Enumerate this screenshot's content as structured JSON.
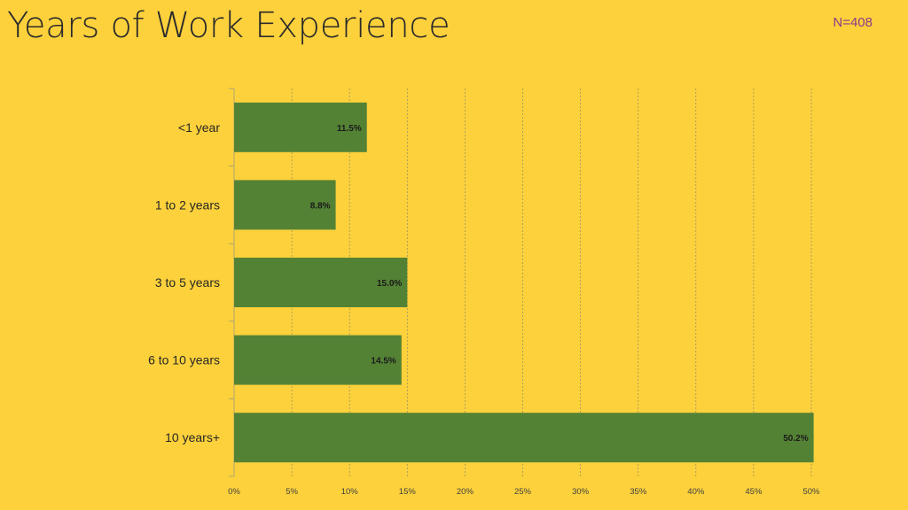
{
  "slide": {
    "background_color": "#FDD13B",
    "title": "Years of Work Experience",
    "sample_size": "N=408"
  },
  "chart_data": {
    "type": "bar",
    "orientation": "horizontal",
    "categories": [
      "<1 year",
      "1 to 2 years",
      "3 to 5 years",
      "6 to 10 years",
      "10 years+"
    ],
    "values": [
      11.5,
      8.8,
      15.0,
      14.5,
      50.2
    ],
    "data_labels": [
      "11.5%",
      "8.8%",
      "15.0%",
      "14.5%",
      "50.2%"
    ],
    "x_ticks": [
      "0%",
      "5%",
      "10%",
      "15%",
      "20%",
      "25%",
      "30%",
      "35%",
      "40%",
      "45%",
      "50%"
    ],
    "xlim": [
      0,
      50
    ],
    "bar_color": "#548235",
    "grid": "vertical dashed",
    "legend": "none"
  }
}
